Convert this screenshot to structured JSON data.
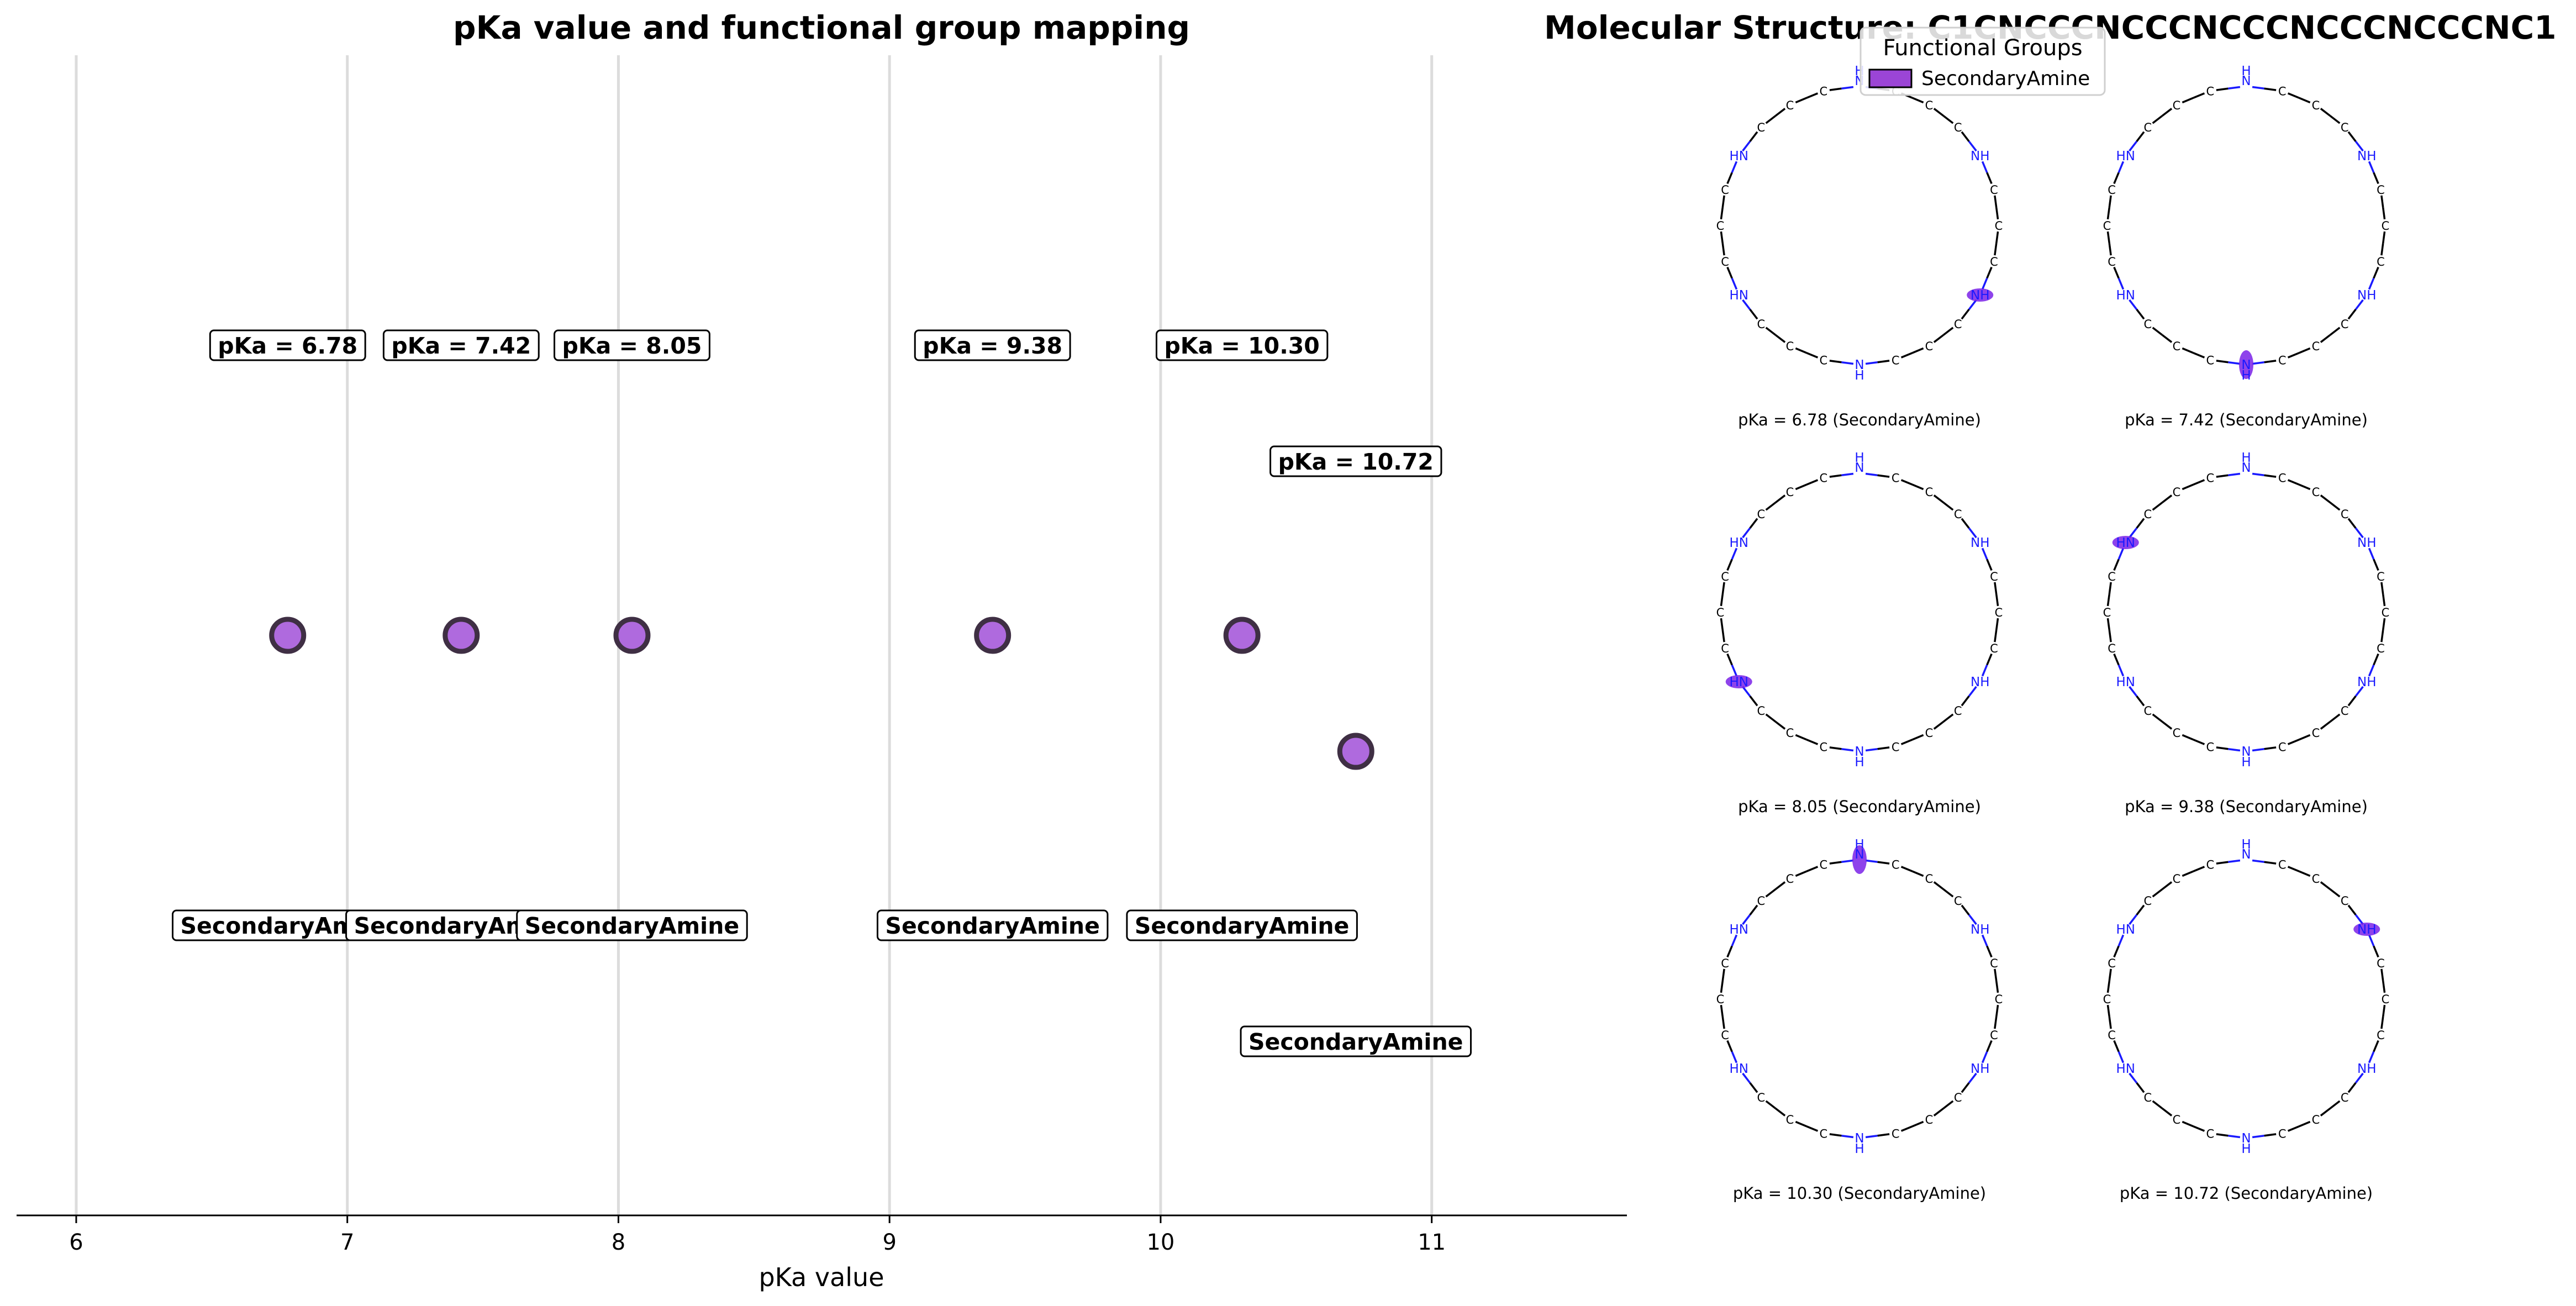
{
  "chart_data": [
    {
      "type": "scatter",
      "title": "pKa value and functional group mapping",
      "xlabel": "pKa value",
      "ylabel": "",
      "xlim": [
        5.78,
        11.72
      ],
      "xticks": [
        6,
        7,
        8,
        9,
        10,
        11
      ],
      "grid": "vertical",
      "marker_color": "#9b45d6",
      "marker_edge_color": "#3f2f44",
      "points": [
        {
          "x": 6.78,
          "y": 0,
          "pka_label": "pKa = 6.78",
          "group": "SecondaryAmine"
        },
        {
          "x": 7.42,
          "y": 0,
          "pka_label": "pKa = 7.42",
          "group": "SecondaryAmine"
        },
        {
          "x": 8.05,
          "y": 0,
          "pka_label": "pKa = 8.05",
          "group": "SecondaryAmine"
        },
        {
          "x": 9.38,
          "y": 0,
          "pka_label": "pKa = 9.38",
          "group": "SecondaryAmine"
        },
        {
          "x": 10.3,
          "y": 0,
          "pka_label": "pKa = 10.30",
          "group": "SecondaryAmine"
        },
        {
          "x": 10.72,
          "y": -0.4,
          "pka_label": "pKa = 10.72",
          "group": "SecondaryAmine"
        }
      ]
    },
    {
      "type": "diagram",
      "title": "Molecular Structure: C1CNCCCNCCCNCCCNCCCNCCCNC1",
      "legend_title": "Functional Groups",
      "legend_entries": [
        "SecondaryAmine"
      ],
      "legend_color": "#9b45d6",
      "highlight_color": "#7a22e8",
      "atom_labels": {
        "carbon": "C",
        "nitrogen_left": "HN",
        "nitrogen_right": "NH",
        "nitrogen_top_bottom": "N",
        "hydrogen": "H"
      },
      "ring_size": 24,
      "nitrogen_positions": [
        0,
        4,
        8,
        12,
        16,
        20
      ],
      "panels": [
        {
          "caption": "pKa = 6.78 (SecondaryAmine)",
          "highlight": 8
        },
        {
          "caption": "pKa = 7.42 (SecondaryAmine)",
          "highlight": 12
        },
        {
          "caption": "pKa = 8.05 (SecondaryAmine)",
          "highlight": 16
        },
        {
          "caption": "pKa = 9.38 (SecondaryAmine)",
          "highlight": 20
        },
        {
          "caption": "pKa = 10.30 (SecondaryAmine)",
          "highlight": 0
        },
        {
          "caption": "pKa = 10.72 (SecondaryAmine)",
          "highlight": 4
        }
      ]
    }
  ]
}
